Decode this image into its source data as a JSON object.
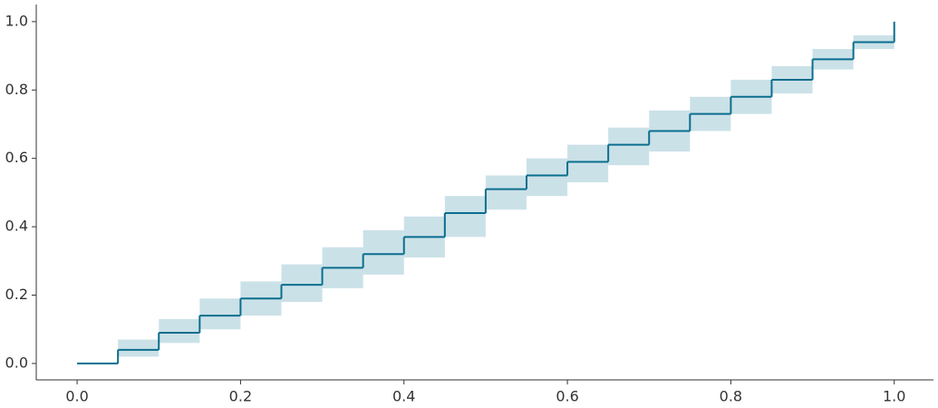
{
  "chart_data": {
    "type": "step",
    "x": [
      0,
      0.05,
      0.1,
      0.15,
      0.2,
      0.25,
      0.3,
      0.35,
      0.4,
      0.45,
      0.5,
      0.55,
      0.6,
      0.65,
      0.7,
      0.75,
      0.8,
      0.85,
      0.9,
      0.95,
      1.0
    ],
    "series": [
      {
        "color": "#0b6e8e",
        "values": [
          0,
          0.04,
          0.09,
          0.14,
          0.19,
          0.23,
          0.28,
          0.32,
          0.37,
          0.44,
          0.51,
          0.55,
          0.59,
          0.64,
          0.68,
          0.73,
          0.78,
          0.83,
          0.89,
          0.94,
          1.0
        ],
        "lower": [
          0,
          0.02,
          0.06,
          0.1,
          0.14,
          0.18,
          0.22,
          0.26,
          0.31,
          0.37,
          0.45,
          0.49,
          0.53,
          0.58,
          0.62,
          0.68,
          0.73,
          0.79,
          0.86,
          0.92,
          0.99
        ],
        "upper": [
          0,
          0.07,
          0.13,
          0.19,
          0.24,
          0.29,
          0.34,
          0.39,
          0.43,
          0.49,
          0.55,
          0.6,
          0.64,
          0.69,
          0.74,
          0.78,
          0.83,
          0.87,
          0.92,
          0.96,
          1.0
        ],
        "band_color": "#b9d7e0"
      }
    ],
    "xlim": [
      -0.05,
      1.048
    ],
    "ylim": [
      -0.048,
      1.05
    ],
    "xticks": [
      {
        "value": 0,
        "label": "0.0"
      },
      0.2,
      0.4,
      0.6,
      0.8,
      {
        "value": 1,
        "label": "1.0"
      }
    ],
    "yticks": [
      {
        "value": 0,
        "label": "0.0"
      },
      0.2,
      0.4,
      0.6,
      0.8,
      {
        "value": 1,
        "label": "1.0"
      }
    ]
  }
}
